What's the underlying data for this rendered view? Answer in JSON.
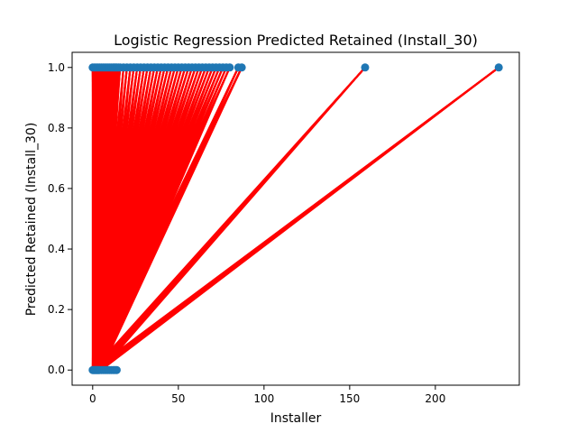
{
  "chart_data": {
    "type": "scatter",
    "title": "Logistic Regression Predicted Retained (Install_30)",
    "xlabel": "Installer",
    "ylabel": "Predicted Retained (Install_30)",
    "xlim": [
      -12,
      249
    ],
    "ylim": [
      -0.05,
      1.05
    ],
    "xticks": [
      0,
      50,
      100,
      150,
      200
    ],
    "yticks": [
      0.0,
      0.2,
      0.4,
      0.6,
      0.8,
      1.0
    ],
    "ytick_labels": [
      "0.0",
      "0.2",
      "0.4",
      "0.6",
      "0.8",
      "1.0"
    ],
    "grid": false,
    "colors": {
      "points": "#1f77b4",
      "line": "#ff0000"
    },
    "series": [
      {
        "role": "scatter points",
        "points_at_1": [
          0,
          1,
          2,
          3,
          4,
          5,
          6,
          7,
          8,
          9,
          10,
          11,
          12,
          13,
          14,
          15,
          16,
          18,
          20,
          22,
          24,
          26,
          28,
          30,
          32,
          34,
          36,
          38,
          40,
          42,
          44,
          46,
          48,
          50,
          52,
          54,
          56,
          58,
          60,
          62,
          64,
          66,
          68,
          70,
          72,
          74,
          76,
          78,
          80,
          85,
          87,
          159,
          237
        ],
        "points_at_0": [
          0,
          0.5,
          1,
          1.5,
          2,
          2.5,
          3,
          3.5,
          4,
          5,
          6,
          7,
          8,
          9,
          10,
          11,
          12,
          13,
          14
        ]
      },
      {
        "role": "connecting line",
        "x_near_zero": [
          0,
          0.5,
          1,
          1.5,
          2,
          2.5,
          3,
          3.5,
          4,
          5
        ]
      }
    ]
  }
}
